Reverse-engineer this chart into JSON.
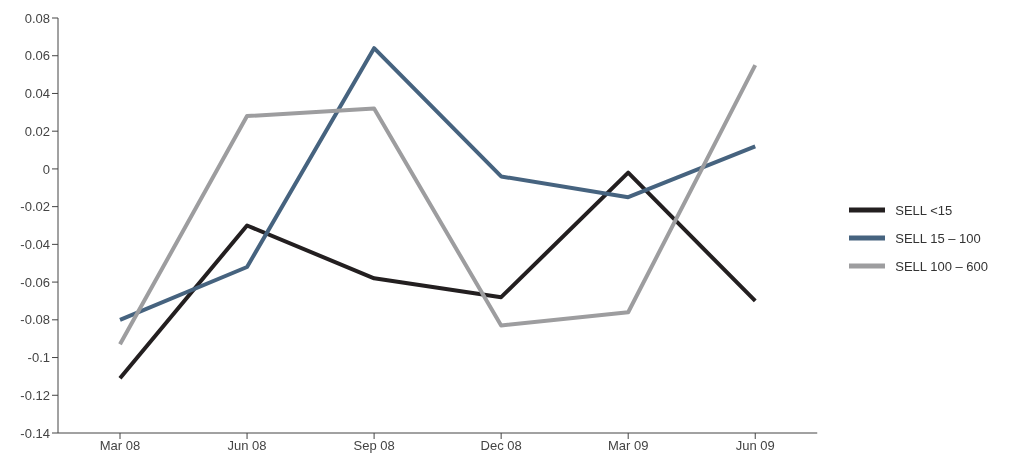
{
  "chart_data": {
    "type": "line",
    "categories": [
      "Mar 08",
      "Jun 08",
      "Sep 08",
      "Dec 08",
      "Mar 09",
      "Jun 09"
    ],
    "series": [
      {
        "name": "SELL <15",
        "color": "#231f20",
        "values": [
          -0.111,
          -0.03,
          -0.058,
          -0.068,
          -0.002,
          -0.07
        ]
      },
      {
        "name": "SELL 15 – 100",
        "color": "#46637f",
        "values": [
          -0.08,
          -0.052,
          0.064,
          -0.004,
          -0.015,
          0.012
        ]
      },
      {
        "name": "SELL 100 – 600",
        "color": "#9d9d9f",
        "values": [
          -0.093,
          0.028,
          0.032,
          -0.083,
          -0.076,
          0.055
        ]
      }
    ],
    "ylim": [
      -0.14,
      0.08
    ],
    "yticks": [
      -0.14,
      -0.12,
      -0.1,
      -0.08,
      -0.06,
      -0.04,
      -0.02,
      0,
      0.02,
      0.04,
      0.06,
      0.08
    ],
    "grid": false,
    "legend": "right",
    "marker": "none",
    "line_style": "solid"
  }
}
